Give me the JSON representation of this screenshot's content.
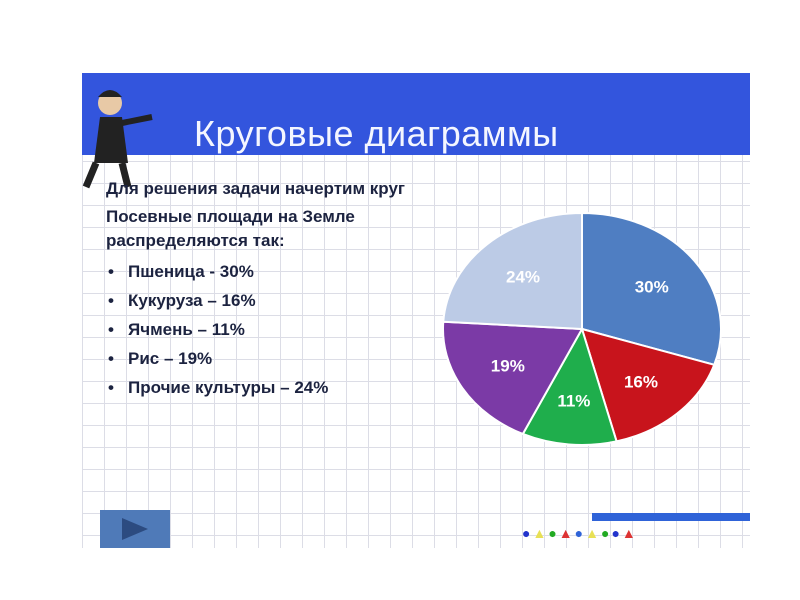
{
  "slide": {
    "title": "Круговые диаграммы",
    "intro": "Для решения задачи начертим круг",
    "description": "Посевные площади на Земле распределяются так:",
    "bullets": [
      "Пшеница - 30%",
      "Кукуруза – 16%",
      "Ячмень – 11%",
      "Рис – 19%",
      "Прочие культуры – 24%"
    ]
  },
  "chart_data": {
    "type": "pie",
    "categories": [
      "Пшеница",
      "Кукуруза",
      "Ячмень",
      "Рис",
      "Прочие культуры"
    ],
    "values": [
      30,
      16,
      11,
      19,
      24
    ],
    "labels": [
      "30%",
      "16%",
      "11%",
      "19%",
      "24%"
    ],
    "colors": [
      "#4f7ec2",
      "#c8141c",
      "#1fae4c",
      "#7b3aa6",
      "#bccbe6"
    ],
    "label_colors": [
      "#ffffff",
      "#ffffff",
      "#ffffff",
      "#ffffff",
      "#ffffff"
    ],
    "start": "12 o'clock, clockwise"
  },
  "colors": {
    "banner": "#3355dd",
    "title": "#f4f6ff",
    "text": "#1c2340"
  }
}
